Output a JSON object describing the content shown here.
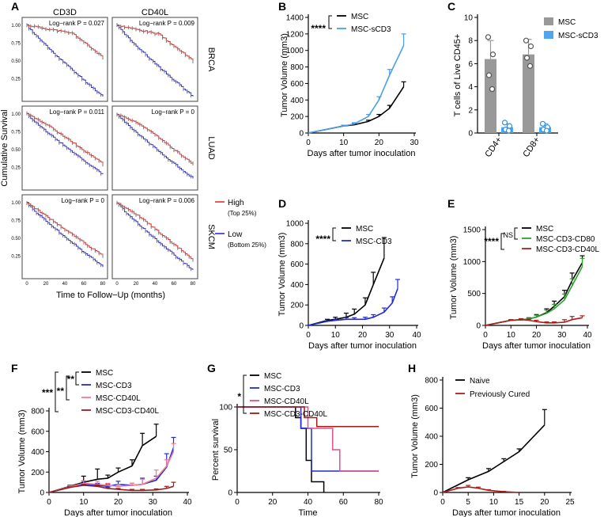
{
  "panel_labels": [
    "A",
    "B",
    "C",
    "D",
    "E",
    "F",
    "G",
    "H"
  ],
  "panel_a": {
    "columns": [
      "CD3D",
      "CD40L"
    ],
    "rows": [
      "BRCA",
      "LUAD",
      "SKCM"
    ],
    "pvalues": [
      [
        "Log−rank P = 0.027",
        "Log−rank P = 0.009"
      ],
      [
        "Log−rank P = 0.011",
        "Log−rank P = 0"
      ],
      [
        "Log−rank P = 0",
        "Log−rank P = 0.006"
      ]
    ],
    "ylabel": "Cumulative Survival",
    "xlabel": "Time to Follow−Up (months)",
    "yticks": [
      "1.00",
      "0.75",
      "0.50",
      "0.25"
    ],
    "xticks": [
      "0",
      "20",
      "40",
      "60",
      "80"
    ],
    "legend": {
      "high": "High",
      "high_sub": "(Top 25%)",
      "low": "Low",
      "low_sub": "(Bottom 25%)"
    },
    "colors": {
      "high": "#e8312f",
      "low": "#2b2bd6",
      "censor": "#777777"
    }
  },
  "panel_b_legend": [
    "MSC",
    "MSC-sCD3"
  ],
  "panel_d_legend": [
    "MSC",
    "MSC-CD3"
  ],
  "panel_e_legend": [
    "MSC",
    "MSC-CD3-CD80",
    "MSC-CD3-CD40L"
  ],
  "panel_f_legend": [
    "MSC",
    "MSC-CD3",
    "MSC-CD40L",
    "MSC-CD3-CD40L"
  ],
  "panel_g_legend": [
    "MSC",
    "MSC-CD3",
    "MSC-CD40L",
    "MSC-CD3-CD40L"
  ],
  "panel_h_legend": [
    "Naive",
    "Previously Cured"
  ],
  "sig": {
    "b": "****",
    "d": "****",
    "e_outer": "****",
    "e_inner": "NS",
    "f_outer": "***",
    "f_mid": "**",
    "f_inner": "**",
    "g": "*"
  },
  "chart_data": [
    {
      "panel": "B",
      "type": "line",
      "xlabel": "Days after tumor inoculation",
      "ylabel": "Tumor Volume (mm3)",
      "xlim": [
        0,
        30
      ],
      "ylim": [
        0,
        1400
      ],
      "xticks": [
        0,
        10,
        20,
        30
      ],
      "yticks": [
        0,
        200,
        400,
        600,
        800,
        1000,
        1200,
        1400
      ],
      "series": [
        {
          "name": "MSC",
          "color": "#000000",
          "x": [
            0,
            10,
            13,
            17,
            20,
            23,
            27
          ],
          "y": [
            0,
            85,
            100,
            140,
            200,
            300,
            560
          ],
          "err": [
            0,
            10,
            12,
            15,
            25,
            35,
            60
          ]
        },
        {
          "name": "MSC-sCD3",
          "color": "#4d9fe8",
          "x": [
            0,
            10,
            13,
            17,
            20,
            23,
            27
          ],
          "y": [
            0,
            85,
            110,
            200,
            400,
            700,
            1060
          ],
          "err": [
            0,
            10,
            15,
            25,
            40,
            70,
            140
          ]
        }
      ]
    },
    {
      "panel": "C",
      "type": "bar",
      "categories": [
        "CD4+",
        "CD8+"
      ],
      "ylabel": "T cells of Live CD45+",
      "ylim": [
        0,
        10
      ],
      "yticks": [
        0,
        2,
        4,
        6,
        8,
        10
      ],
      "series": [
        {
          "name": "MSC",
          "color": "#999999",
          "values": [
            6.4,
            6.8
          ],
          "err": [
            1.6,
            1.3
          ],
          "points": [
            [
              8.3,
              6.8,
              5.0,
              3.8
            ],
            [
              8.0,
              7.5,
              6.5,
              5.8
            ]
          ]
        },
        {
          "name": "MSC-sCD3",
          "color": "#4da6ee",
          "values": [
            0.5,
            0.5
          ],
          "err": [
            0.3,
            0.3
          ],
          "points": [
            [
              0.9,
              0.6,
              0.3,
              0.2
            ],
            [
              0.8,
              0.5,
              0.3,
              0.2
            ]
          ]
        }
      ]
    },
    {
      "panel": "D",
      "type": "line",
      "xlabel": "Days after tumor inoculation",
      "ylabel": "Tumor Volume (mm3)",
      "xlim": [
        0,
        40
      ],
      "ylim": [
        0,
        1000
      ],
      "xticks": [
        0,
        10,
        20,
        30,
        40
      ],
      "yticks": [
        0,
        200,
        400,
        600,
        800,
        1000
      ],
      "series": [
        {
          "name": "MSC",
          "color": "#000000",
          "x": [
            0,
            7,
            10,
            14,
            17,
            21,
            24,
            28
          ],
          "y": [
            0,
            50,
            60,
            80,
            110,
            200,
            400,
            660
          ],
          "err": [
            0,
            10,
            20,
            40,
            50,
            70,
            120,
            200
          ]
        },
        {
          "name": "MSC-CD3",
          "color": "#1f2ad6",
          "x": [
            0,
            7,
            10,
            14,
            17,
            21,
            24,
            28,
            31,
            33
          ],
          "y": [
            0,
            40,
            50,
            60,
            60,
            60,
            80,
            130,
            220,
            360
          ],
          "err": [
            0,
            5,
            10,
            15,
            15,
            20,
            25,
            40,
            60,
            90
          ]
        }
      ]
    },
    {
      "panel": "E",
      "type": "line",
      "xlabel": "Days after tumor inoculation",
      "ylabel": "Tumor Volume (mm3)",
      "xlim": [
        0,
        40
      ],
      "ylim": [
        0,
        1500
      ],
      "xticks": [
        0,
        10,
        20,
        30,
        40
      ],
      "yticks": [
        0,
        500,
        1000,
        1500
      ],
      "series": [
        {
          "name": "MSC",
          "color": "#000000",
          "x": [
            0,
            10,
            14,
            17,
            20,
            24,
            27,
            31,
            34,
            38
          ],
          "y": [
            0,
            80,
            85,
            100,
            130,
            200,
            300,
            450,
            700,
            980
          ],
          "err": [
            0,
            10,
            15,
            20,
            40,
            60,
            80,
            100,
            120,
            110
          ]
        },
        {
          "name": "MSC-CD3-CD80",
          "color": "#2ca02c",
          "x": [
            0,
            10,
            14,
            17,
            20,
            24,
            27,
            31,
            34,
            38
          ],
          "y": [
            0,
            80,
            85,
            100,
            130,
            190,
            260,
            400,
            620,
            920
          ],
          "err": [
            0,
            10,
            12,
            15,
            30,
            50,
            70,
            90,
            110,
            130
          ]
        },
        {
          "name": "MSC-CD3-CD40L",
          "color": "#b01c1c",
          "x": [
            0,
            10,
            14,
            17,
            20,
            24,
            27,
            31,
            34,
            38
          ],
          "y": [
            0,
            80,
            90,
            80,
            60,
            40,
            40,
            50,
            90,
            120
          ],
          "err": [
            0,
            10,
            15,
            15,
            20,
            15,
            15,
            40,
            50,
            30
          ]
        }
      ]
    },
    {
      "panel": "F",
      "type": "line",
      "xlabel": "Days after tumor inoculation",
      "ylabel": "Tumor Volume (mm3)",
      "xlim": [
        0,
        40
      ],
      "ylim": [
        0,
        800
      ],
      "xticks": [
        0,
        10,
        20,
        30,
        40
      ],
      "yticks": [
        0,
        200,
        400,
        600,
        800
      ],
      "series": [
        {
          "name": "MSC",
          "color": "#000000",
          "x": [
            0,
            6,
            10,
            14,
            17,
            20,
            24,
            27,
            31
          ],
          "y": [
            0,
            60,
            100,
            130,
            140,
            200,
            260,
            460,
            550
          ],
          "err": [
            0,
            10,
            60,
            100,
            30,
            40,
            60,
            120,
            120
          ]
        },
        {
          "name": "MSC-CD3",
          "color": "#1f2ad6",
          "x": [
            0,
            6,
            10,
            14,
            17,
            20,
            24,
            27,
            31,
            34,
            36
          ],
          "y": [
            0,
            50,
            80,
            70,
            60,
            80,
            70,
            80,
            120,
            250,
            440
          ],
          "err": [
            0,
            10,
            30,
            20,
            20,
            30,
            20,
            60,
            40,
            130,
            100
          ]
        },
        {
          "name": "MSC-CD40L",
          "color": "#f27c8f",
          "x": [
            0,
            6,
            10,
            14,
            17,
            20,
            24,
            27,
            31,
            34,
            36
          ],
          "y": [
            0,
            55,
            90,
            80,
            70,
            60,
            70,
            80,
            140,
            260,
            400
          ],
          "err": [
            0,
            10,
            25,
            30,
            20,
            20,
            20,
            50,
            80,
            60,
            80
          ]
        },
        {
          "name": "MSC-CD3-CD40L",
          "color": "#9c1c1c",
          "x": [
            0,
            6,
            10,
            14,
            17,
            20,
            24,
            27,
            31,
            34,
            36
          ],
          "y": [
            0,
            50,
            70,
            60,
            40,
            30,
            20,
            20,
            25,
            40,
            60
          ],
          "err": [
            0,
            5,
            10,
            15,
            10,
            10,
            10,
            10,
            10,
            20,
            40
          ]
        }
      ]
    },
    {
      "panel": "G",
      "type": "line",
      "xlabel": "Time",
      "ylabel": "Percent survival",
      "xlim": [
        0,
        80
      ],
      "ylim": [
        0,
        100
      ],
      "xticks": [
        0,
        20,
        40,
        60,
        80
      ],
      "yticks": [
        0,
        50,
        100
      ],
      "series": [
        {
          "name": "MSC",
          "color": "#000000",
          "steps": [
            [
              0,
              100
            ],
            [
              33,
              100
            ],
            [
              33,
              87.5
            ],
            [
              36,
              87.5
            ],
            [
              36,
              75
            ],
            [
              39,
              75
            ],
            [
              39,
              37.5
            ],
            [
              42,
              37.5
            ],
            [
              42,
              12.5
            ],
            [
              49,
              12.5
            ],
            [
              49,
              0
            ]
          ]
        },
        {
          "name": "MSC-CD3",
          "color": "#1f2ad6",
          "steps": [
            [
              0,
              100
            ],
            [
              36,
              100
            ],
            [
              36,
              75
            ],
            [
              42,
              75
            ],
            [
              42,
              25
            ],
            [
              80,
              25
            ]
          ]
        },
        {
          "name": "MSC-CD40L",
          "color": "#e0508a",
          "steps": [
            [
              0,
              100
            ],
            [
              40,
              100
            ],
            [
              40,
              75
            ],
            [
              54,
              75
            ],
            [
              54,
              50
            ],
            [
              58,
              50
            ],
            [
              58,
              25
            ],
            [
              80,
              25
            ]
          ]
        },
        {
          "name": "MSC-CD3-CD40L",
          "color": "#9c1c1c",
          "steps": [
            [
              0,
              100
            ],
            [
              38,
              100
            ],
            [
              38,
              87.5
            ],
            [
              45,
              87.5
            ],
            [
              45,
              77
            ],
            [
              80,
              77
            ]
          ]
        }
      ]
    },
    {
      "panel": "H",
      "type": "line",
      "xlabel": "Days after tumor inoculation",
      "ylabel": "Tumor Volume (mm3)",
      "xlim": [
        0,
        25
      ],
      "ylim": [
        0,
        800
      ],
      "xticks": [
        0,
        5,
        10,
        15,
        20,
        25
      ],
      "yticks": [
        0,
        200,
        400,
        600,
        800
      ],
      "series": [
        {
          "name": "Naive",
          "color": "#000000",
          "x": [
            0,
            5,
            9,
            12,
            15,
            20
          ],
          "y": [
            0,
            90,
            150,
            220,
            290,
            480
          ],
          "err": [
            0,
            15,
            20,
            20,
            20,
            110
          ]
        },
        {
          "name": "Previously Cured",
          "color": "#b01c1c",
          "x": [
            0,
            3,
            5,
            7,
            9,
            12,
            15
          ],
          "y": [
            0,
            30,
            40,
            30,
            15,
            5,
            0
          ],
          "err": [
            0,
            5,
            10,
            8,
            5,
            3,
            0
          ]
        }
      ]
    }
  ]
}
